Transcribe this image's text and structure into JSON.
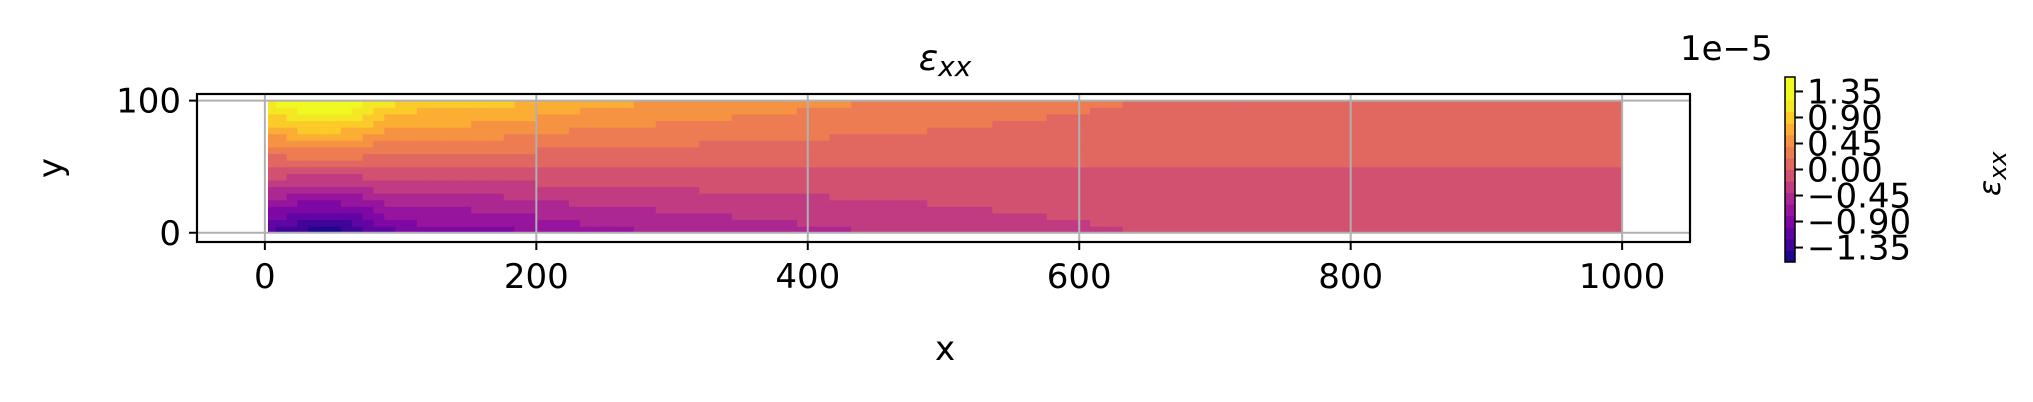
{
  "chart_data": {
    "type": "heatmap",
    "title": "ε_xx",
    "title_parts": {
      "base": "ε",
      "sub": "xx"
    },
    "xlabel": "x",
    "ylabel": "y",
    "xlim": [
      -50,
      1050
    ],
    "ylim": [
      -7,
      105
    ],
    "data_extent": {
      "x": [
        0,
        1000
      ],
      "y": [
        0,
        100
      ]
    },
    "xticks": [
      0,
      200,
      400,
      600,
      800,
      1000
    ],
    "xtick_labels": [
      "0",
      "200",
      "400",
      "600",
      "800",
      "1000"
    ],
    "yticks": [
      0,
      100
    ],
    "ytick_labels": [
      "0",
      "100"
    ],
    "grid": true,
    "colormap": "plasma",
    "colorbar": {
      "label": "ε_xx",
      "label_parts": {
        "base": "ε",
        "sub": "xx"
      },
      "range": [
        -1.6,
        1.6
      ],
      "offset_text": "1e−5",
      "ticks": [
        1.35,
        0.9,
        0.45,
        0.0,
        -0.45,
        -0.9,
        -1.35
      ],
      "tick_labels": [
        "1.35",
        "0.90",
        "0.45",
        "0.00",
        "−0.45",
        "−0.90",
        "−1.35"
      ]
    },
    "field_note_values": {
      "top_left_max": 1.6,
      "bottom_left_min": -1.6,
      "right_end_value": 0.0
    }
  }
}
